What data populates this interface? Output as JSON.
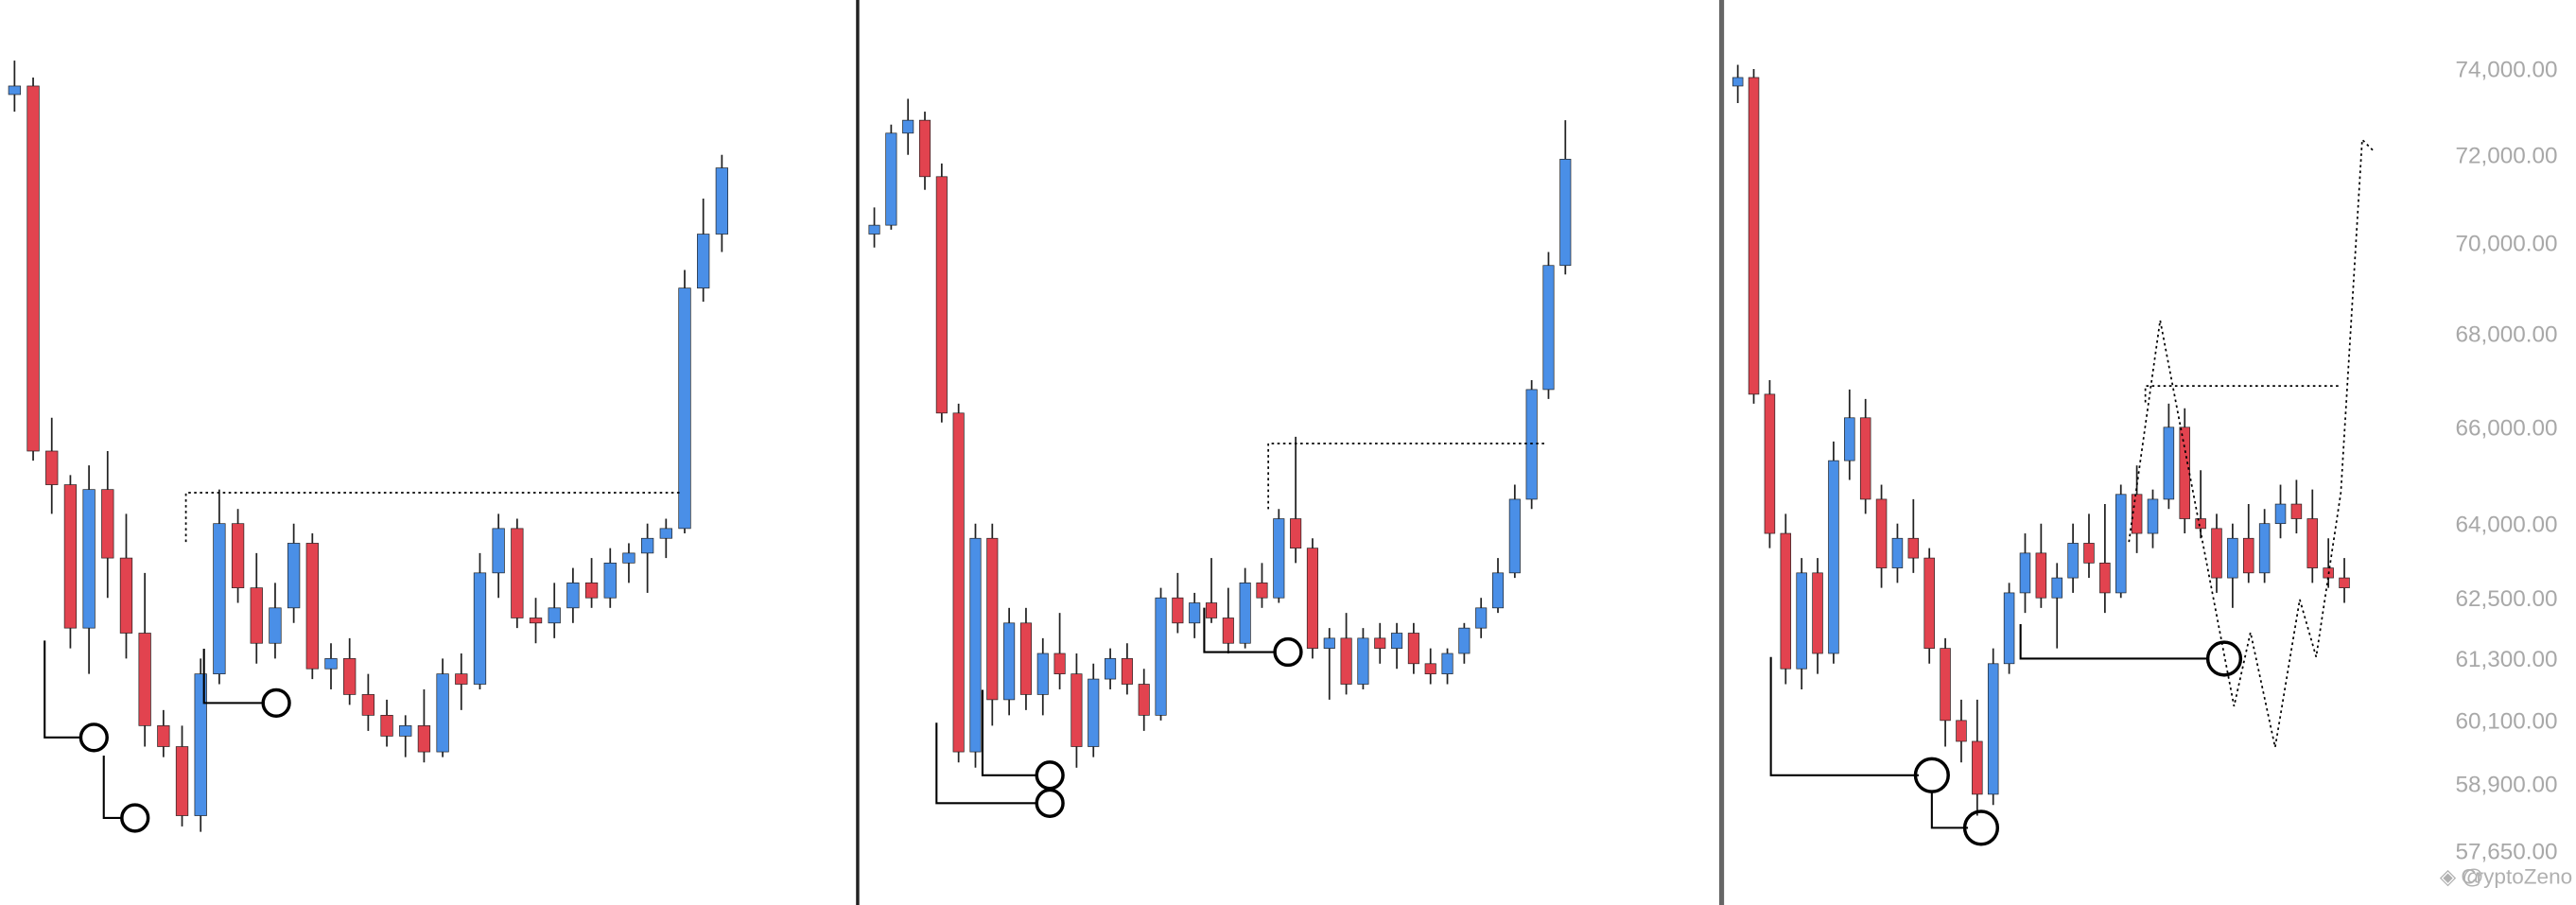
{
  "chart_data": [
    {
      "type": "candlestick",
      "log_scale": true,
      "ylim": [
        56660,
        75650
      ],
      "up_color": "#4a8fe7",
      "down_color": "#e2434f",
      "candles": [
        [
          73400,
          74200,
          73000,
          73600
        ],
        [
          73600,
          73800,
          65300,
          65500
        ],
        [
          65500,
          66200,
          64200,
          64800
        ],
        [
          64800,
          65000,
          61500,
          61900
        ],
        [
          61900,
          65200,
          61000,
          64700
        ],
        [
          64700,
          65500,
          62500,
          63300
        ],
        [
          63300,
          64200,
          61300,
          61800
        ],
        [
          61800,
          63000,
          59600,
          60000
        ],
        [
          60000,
          60300,
          59400,
          59600
        ],
        [
          59600,
          60000,
          58100,
          58300
        ],
        [
          58300,
          61300,
          58000,
          61000
        ],
        [
          61000,
          64700,
          60800,
          64000
        ],
        [
          64000,
          64300,
          62400,
          62700
        ],
        [
          62700,
          63400,
          61200,
          61600
        ],
        [
          61600,
          62800,
          61300,
          62300
        ],
        [
          62300,
          64000,
          62000,
          63600
        ],
        [
          63600,
          63800,
          60900,
          61100
        ],
        [
          61100,
          61600,
          60700,
          61300
        ],
        [
          61300,
          61700,
          60400,
          60600
        ],
        [
          60600,
          61000,
          59900,
          60200
        ],
        [
          60200,
          60500,
          59600,
          59800
        ],
        [
          59800,
          60200,
          59400,
          60000
        ],
        [
          60000,
          60700,
          59300,
          59500
        ],
        [
          59500,
          61300,
          59400,
          61000
        ],
        [
          61000,
          61400,
          60300,
          60800
        ],
        [
          60800,
          63400,
          60700,
          63000
        ],
        [
          63000,
          64200,
          62500,
          63900
        ],
        [
          63900,
          64100,
          61900,
          62100
        ],
        [
          62100,
          62500,
          61600,
          62000
        ],
        [
          62000,
          62800,
          61700,
          62300
        ],
        [
          62300,
          63100,
          62000,
          62800
        ],
        [
          62800,
          63300,
          62300,
          62500
        ],
        [
          62500,
          63500,
          62300,
          63200
        ],
        [
          63200,
          63600,
          62800,
          63400
        ],
        [
          63400,
          64000,
          62600,
          63700
        ],
        [
          63700,
          64100,
          63300,
          63900
        ],
        [
          63900,
          69400,
          63800,
          69000
        ],
        [
          69000,
          71000,
          68700,
          70200
        ],
        [
          70200,
          72000,
          69800,
          71700
        ]
      ]
    },
    {
      "type": "candlestick",
      "log_scale": true,
      "ylim": [
        56660,
        75650
      ],
      "up_color": "#4a8fe7",
      "down_color": "#e2434f",
      "candles": [
        [
          70200,
          70800,
          69900,
          70400
        ],
        [
          70400,
          72700,
          70300,
          72500
        ],
        [
          72500,
          73300,
          72000,
          72800
        ],
        [
          72800,
          73000,
          71200,
          71500
        ],
        [
          71500,
          71800,
          66100,
          66300
        ],
        [
          66300,
          66500,
          59300,
          59500
        ],
        [
          59500,
          64000,
          59200,
          63700
        ],
        [
          63700,
          64000,
          60000,
          60500
        ],
        [
          60500,
          62300,
          60200,
          62000
        ],
        [
          62000,
          62300,
          60300,
          60600
        ],
        [
          60600,
          61700,
          60200,
          61400
        ],
        [
          61400,
          62200,
          60700,
          61000
        ],
        [
          61000,
          61400,
          59200,
          59600
        ],
        [
          59600,
          61200,
          59400,
          60900
        ],
        [
          60900,
          61500,
          60700,
          61300
        ],
        [
          61300,
          61600,
          60600,
          60800
        ],
        [
          60800,
          61100,
          59900,
          60200
        ],
        [
          60200,
          62700,
          60100,
          62500
        ],
        [
          62500,
          63000,
          61800,
          62000
        ],
        [
          62000,
          62600,
          61700,
          62400
        ],
        [
          62400,
          63300,
          62000,
          62100
        ],
        [
          62100,
          62700,
          61400,
          61600
        ],
        [
          61600,
          63100,
          61500,
          62800
        ],
        [
          62800,
          63200,
          62300,
          62500
        ],
        [
          62500,
          64300,
          62400,
          64100
        ],
        [
          64100,
          65800,
          63200,
          63500
        ],
        [
          63500,
          63700,
          61300,
          61500
        ],
        [
          61500,
          61900,
          60500,
          61700
        ],
        [
          61700,
          62200,
          60600,
          60800
        ],
        [
          60800,
          61900,
          60700,
          61700
        ],
        [
          61700,
          62000,
          61200,
          61500
        ],
        [
          61500,
          62000,
          61100,
          61800
        ],
        [
          61800,
          62000,
          61000,
          61200
        ],
        [
          61200,
          61500,
          60800,
          61000
        ],
        [
          61000,
          61500,
          60800,
          61400
        ],
        [
          61400,
          62000,
          61200,
          61900
        ],
        [
          61900,
          62500,
          61700,
          62300
        ],
        [
          62300,
          63300,
          62200,
          63000
        ],
        [
          63000,
          64800,
          62900,
          64500
        ],
        [
          64500,
          67000,
          64300,
          66800
        ],
        [
          66800,
          69800,
          66600,
          69500
        ],
        [
          69500,
          72800,
          69300,
          71900
        ]
      ]
    },
    {
      "type": "candlestick",
      "log_scale": true,
      "ylim": [
        56660,
        75650
      ],
      "up_color": "#4a8fe7",
      "down_color": "#e2434f",
      "yticks": [
        {
          "value": 74000,
          "label": "74,000.00"
        },
        {
          "value": 72000,
          "label": "72,000.00"
        },
        {
          "value": 70000,
          "label": "70,000.00"
        },
        {
          "value": 68000,
          "label": "68,000.00"
        },
        {
          "value": 66000,
          "label": "66,000.00"
        },
        {
          "value": 64000,
          "label": "64,000.00"
        },
        {
          "value": 62500,
          "label": "62,500.00"
        },
        {
          "value": 61300,
          "label": "61,300.00"
        },
        {
          "value": 60100,
          "label": "60,100.00"
        },
        {
          "value": 58900,
          "label": "58,900.00"
        },
        {
          "value": 57650,
          "label": "57,650.00"
        }
      ],
      "watermark": "CryptoZeno",
      "candles": [
        [
          73600,
          74100,
          73200,
          73800
        ],
        [
          73800,
          74000,
          66500,
          66700
        ],
        [
          66700,
          67000,
          63500,
          63800
        ],
        [
          63800,
          64200,
          60800,
          61100
        ],
        [
          61100,
          63300,
          60700,
          63000
        ],
        [
          63000,
          63300,
          61000,
          61400
        ],
        [
          61400,
          65700,
          61200,
          65300
        ],
        [
          65300,
          66800,
          64900,
          66200
        ],
        [
          66200,
          66600,
          64200,
          64500
        ],
        [
          64500,
          64800,
          62700,
          63100
        ],
        [
          63100,
          64000,
          62800,
          63700
        ],
        [
          63700,
          64500,
          63000,
          63300
        ],
        [
          63300,
          63500,
          61200,
          61500
        ],
        [
          61500,
          61700,
          59600,
          60100
        ],
        [
          60100,
          60500,
          59300,
          59700
        ],
        [
          59700,
          60500,
          58300,
          58700
        ],
        [
          58700,
          61500,
          58500,
          61200
        ],
        [
          61200,
          62800,
          61000,
          62600
        ],
        [
          62600,
          63800,
          62200,
          63400
        ],
        [
          63400,
          64000,
          62300,
          62500
        ],
        [
          62500,
          63200,
          61500,
          62900
        ],
        [
          62900,
          64000,
          62600,
          63600
        ],
        [
          63600,
          64200,
          62900,
          63200
        ],
        [
          63200,
          64400,
          62200,
          62600
        ],
        [
          62600,
          64800,
          62500,
          64600
        ],
        [
          64600,
          65200,
          63400,
          63800
        ],
        [
          63800,
          64700,
          63500,
          64500
        ],
        [
          64500,
          66500,
          64300,
          66000
        ],
        [
          66000,
          66400,
          63800,
          64100
        ],
        [
          64100,
          65100,
          63700,
          63900
        ],
        [
          63900,
          64200,
          62600,
          62900
        ],
        [
          62900,
          64000,
          62300,
          63700
        ],
        [
          63700,
          64400,
          62800,
          63000
        ],
        [
          63000,
          64300,
          62800,
          64000
        ],
        [
          64000,
          64800,
          63700,
          64400
        ],
        [
          64400,
          64900,
          63800,
          64100
        ],
        [
          64100,
          64700,
          62800,
          63100
        ],
        [
          63100,
          63700,
          62700,
          62900
        ],
        [
          62900,
          63300,
          62400,
          62700
        ]
      ]
    }
  ]
}
